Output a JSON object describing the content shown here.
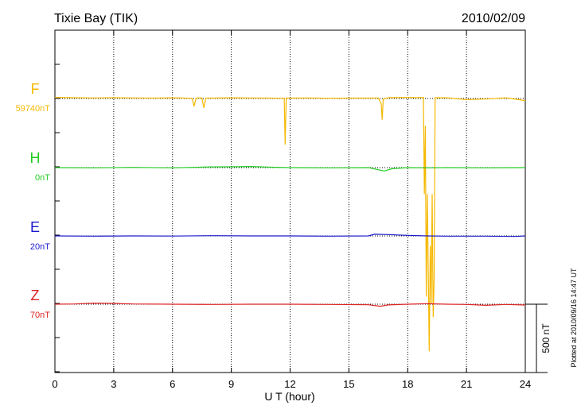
{
  "header": {
    "station": "Tixie Bay (TIK)",
    "date": "2010/02/09"
  },
  "footer": {
    "plotted": "Plotted at 2010/09/16 14:47 UT"
  },
  "chart_data": {
    "type": "line",
    "xlabel": "U T (hour)",
    "xlim": [
      0,
      24
    ],
    "x_ticks": [
      "0",
      "3",
      "6",
      "9",
      "12",
      "15",
      "18",
      "21",
      "24"
    ],
    "grid": "vertical dotted at every 3 hours",
    "scale_bar": {
      "label": "500 nT",
      "value_nT": 500
    },
    "series": [
      {
        "name": "F",
        "baseline_label": "59740nT",
        "color": "#f5b800",
        "points": [
          [
            0,
            -8
          ],
          [
            1,
            -6
          ],
          [
            2,
            -4
          ],
          [
            3,
            -6
          ],
          [
            4,
            -4
          ],
          [
            5,
            -3
          ],
          [
            6,
            -5
          ],
          [
            7,
            -2
          ],
          [
            7.1,
            58
          ],
          [
            7.2,
            -3
          ],
          [
            7.5,
            -4
          ],
          [
            7.6,
            68
          ],
          [
            7.7,
            -3
          ],
          [
            8,
            -3
          ],
          [
            9,
            -5
          ],
          [
            10,
            -4
          ],
          [
            11,
            -3
          ],
          [
            11.7,
            -2
          ],
          [
            11.75,
            338
          ],
          [
            11.8,
            -3
          ],
          [
            12,
            -3
          ],
          [
            13,
            -4
          ],
          [
            14,
            -2
          ],
          [
            15,
            -3
          ],
          [
            16,
            -3
          ],
          [
            16.5,
            -4
          ],
          [
            16.65,
            38
          ],
          [
            16.7,
            155
          ],
          [
            16.75,
            5
          ],
          [
            17,
            -6
          ],
          [
            18,
            -8
          ],
          [
            18.5,
            -6
          ],
          [
            18.8,
            -8
          ],
          [
            18.85,
            700
          ],
          [
            18.9,
            200
          ],
          [
            18.95,
            1450
          ],
          [
            19.0,
            700
          ],
          [
            19.1,
            1850
          ],
          [
            19.15,
            1080
          ],
          [
            19.2,
            1500
          ],
          [
            19.25,
            700
          ],
          [
            19.3,
            1600
          ],
          [
            19.35,
            1320
          ],
          [
            19.4,
            -6
          ],
          [
            20,
            -5
          ],
          [
            21,
            8
          ],
          [
            22,
            4
          ],
          [
            23,
            -5
          ],
          [
            23.5,
            5
          ],
          [
            24,
            15
          ]
        ]
      },
      {
        "name": "H",
        "baseline_label": "0nT",
        "color": "#22cc22",
        "points": [
          [
            0,
            0
          ],
          [
            2,
            2
          ],
          [
            4,
            -2
          ],
          [
            6,
            2
          ],
          [
            8,
            -5
          ],
          [
            9,
            -6
          ],
          [
            10,
            -8
          ],
          [
            11,
            -3
          ],
          [
            12,
            0
          ],
          [
            14,
            2
          ],
          [
            16,
            0
          ],
          [
            16.8,
            25
          ],
          [
            17.2,
            8
          ],
          [
            18,
            0
          ],
          [
            19,
            2
          ],
          [
            20,
            0
          ],
          [
            22,
            2
          ],
          [
            24,
            0
          ]
        ]
      },
      {
        "name": "E",
        "baseline_label": "20nT",
        "color": "#1a1acc",
        "points": [
          [
            0,
            0
          ],
          [
            2,
            2
          ],
          [
            4,
            0
          ],
          [
            6,
            1
          ],
          [
            8,
            -2
          ],
          [
            10,
            0
          ],
          [
            12,
            0
          ],
          [
            14,
            2
          ],
          [
            16,
            0
          ],
          [
            16.3,
            -12
          ],
          [
            17,
            -10
          ],
          [
            18,
            -4
          ],
          [
            19,
            0
          ],
          [
            20,
            2
          ],
          [
            22,
            2
          ],
          [
            23.5,
            4
          ],
          [
            24,
            0
          ]
        ]
      },
      {
        "name": "Z",
        "baseline_label": "70nT",
        "color": "#dd2222",
        "points": [
          [
            0,
            0
          ],
          [
            1,
            -2
          ],
          [
            2,
            -8
          ],
          [
            3,
            -6
          ],
          [
            4,
            -2
          ],
          [
            6,
            0
          ],
          [
            8,
            2
          ],
          [
            10,
            0
          ],
          [
            12,
            0
          ],
          [
            14,
            2
          ],
          [
            16,
            4
          ],
          [
            16.6,
            15
          ],
          [
            17,
            5
          ],
          [
            18,
            0
          ],
          [
            19,
            -4
          ],
          [
            20,
            0
          ],
          [
            21,
            2
          ],
          [
            22,
            8
          ],
          [
            23,
            2
          ],
          [
            24,
            6
          ]
        ]
      }
    ]
  }
}
